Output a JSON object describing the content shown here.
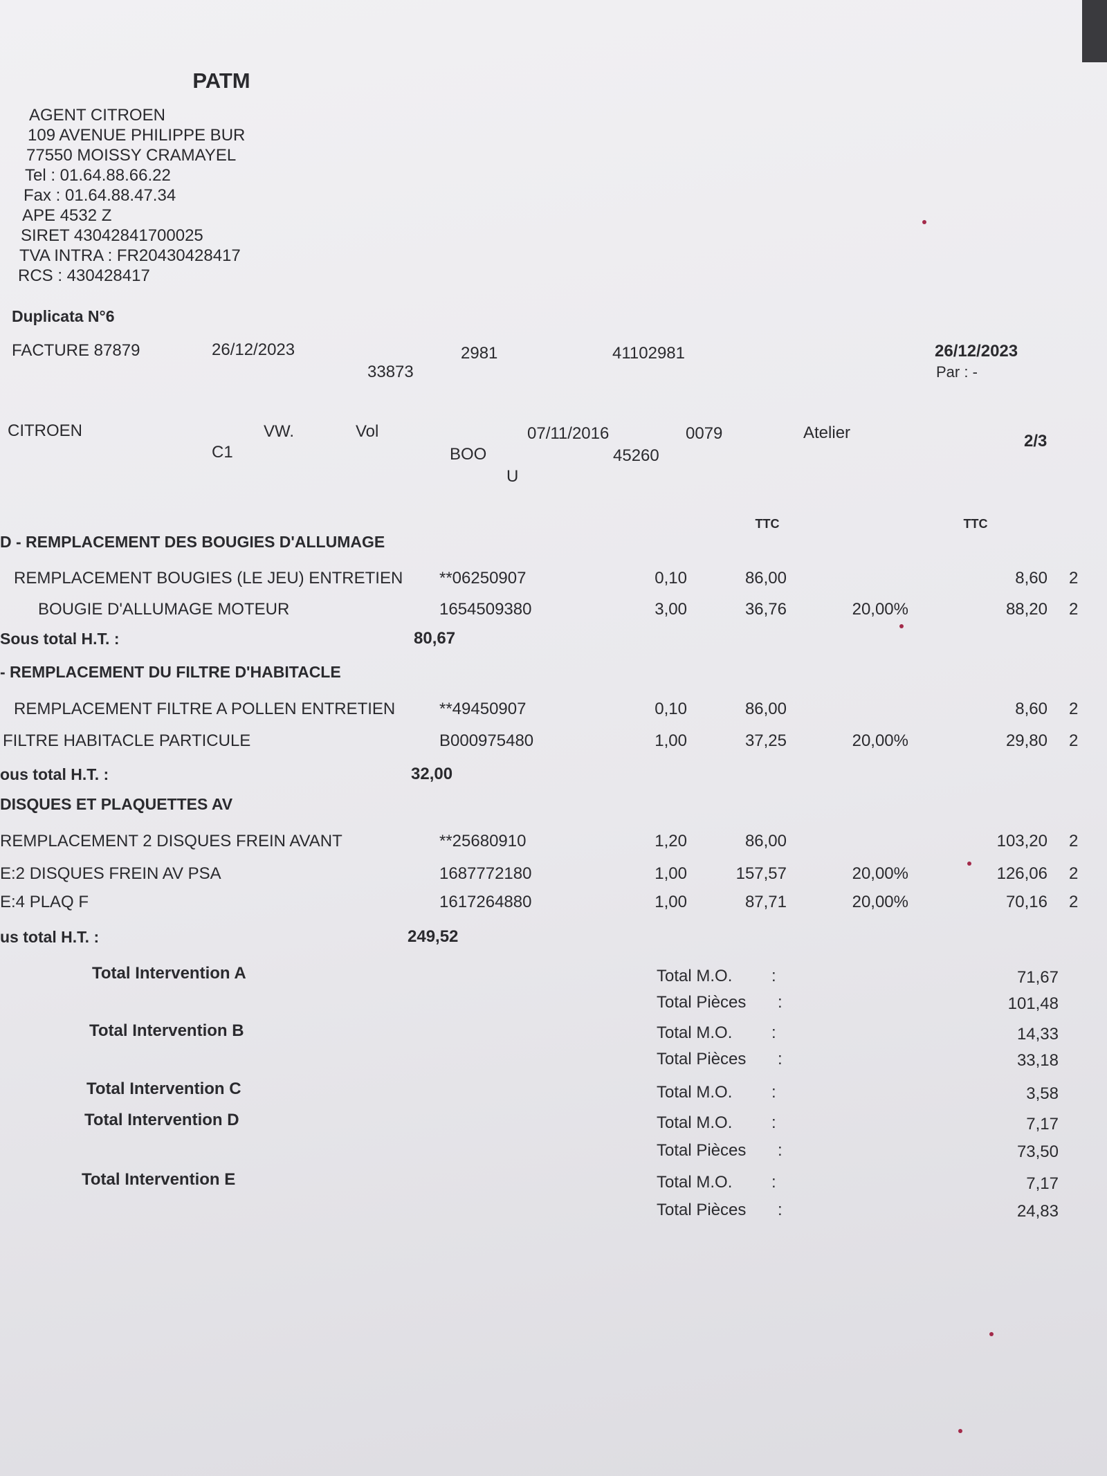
{
  "header": {
    "title": "PATM",
    "address": [
      "AGENT CITROEN",
      "109 AVENUE PHILIPPE BUR",
      "77550 MOISSY CRAMAYEL",
      "Tel : 01.64.88.66.22",
      "Fax : 01.64.88.47.34",
      "APE 4532 Z",
      "SIRET 43042841700025",
      "TVA INTRA : FR20430428417",
      "RCS : 430428417"
    ]
  },
  "duplicata": "Duplicata N°6",
  "invoice": {
    "number": "FACTURE 87879",
    "date": "26/12/2023",
    "code1": "33873",
    "code2": "2981",
    "code3": "41102981",
    "issue_date": "26/12/2023",
    "par": "Par : -"
  },
  "vehicle": {
    "make": "CITROEN",
    "model": "C1",
    "field1": "VW.",
    "field2": "Vol",
    "field3": "BOO",
    "field4": "U",
    "date": "07/11/2016",
    "mileage": "45260",
    "code": "0079",
    "type": "Atelier",
    "page": "2/3"
  },
  "columns": {
    "ttc1": "TTC",
    "ttc2": "TTC"
  },
  "sections": [
    {
      "title": "D - REMPLACEMENT DES BOUGIES D'ALLUMAGE",
      "lines": [
        {
          "label": "REMPLACEMENT BOUGIES (LE JEU) ENTRETIEN",
          "ref": "**06250907",
          "qty": "0,10",
          "price": "86,00",
          "amount": "8,60",
          "code": "2"
        },
        {
          "label": "BOUGIE D'ALLUMAGE MOTEUR",
          "ref": "1654509380",
          "qty": "3,00",
          "price": "36,76",
          "tva": "20,00%",
          "amount": "88,20",
          "code": "2"
        }
      ],
      "subtotal_label": "Sous total H.T. :",
      "subtotal": "80,67"
    },
    {
      "title": "- REMPLACEMENT DU FILTRE D'HABITACLE",
      "lines": [
        {
          "label": "REMPLACEMENT FILTRE A POLLEN ENTRETIEN",
          "ref": "**49450907",
          "qty": "0,10",
          "price": "86,00",
          "amount": "8,60",
          "code": "2"
        },
        {
          "label": "FILTRE HABITACLE PARTICULE",
          "ref": "B000975480",
          "qty": "1,00",
          "price": "37,25",
          "tva": "20,00%",
          "amount": "29,80",
          "code": "2"
        }
      ],
      "subtotal_label": "ous total H.T. :",
      "subtotal": "32,00"
    },
    {
      "title": "DISQUES ET PLAQUETTES AV",
      "lines": [
        {
          "label": "REMPLACEMENT 2 DISQUES FREIN AVANT",
          "ref": "**25680910",
          "qty": "1,20",
          "price": "86,00",
          "amount": "103,20",
          "code": "2"
        },
        {
          "label": "E:2 DISQUES FREIN AV PSA",
          "ref": "1687772180",
          "qty": "1,00",
          "price": "157,57",
          "tva": "20,00%",
          "amount": "126,06",
          "code": "2"
        },
        {
          "label": "E:4 PLAQ F",
          "ref": "1617264880",
          "qty": "1,00",
          "price": "87,71",
          "tva": "20,00%",
          "amount": "70,16",
          "code": "2"
        }
      ],
      "subtotal_label": "us total H.T. :",
      "subtotal": "249,52"
    }
  ],
  "totals": {
    "separator": ":",
    "interventions": [
      {
        "name": "Total Intervention A",
        "rows": [
          {
            "label": "Total M.O.",
            "value": "71,67"
          },
          {
            "label": "Total Pièces",
            "value": "101,48"
          }
        ]
      },
      {
        "name": "Total Intervention B",
        "rows": [
          {
            "label": "Total M.O.",
            "value": "14,33"
          },
          {
            "label": "Total Pièces",
            "value": "33,18"
          }
        ]
      },
      {
        "name": "Total Intervention C",
        "rows": [
          {
            "label": "Total M.O.",
            "value": "3,58"
          }
        ]
      },
      {
        "name": "Total Intervention D",
        "rows": [
          {
            "label": "Total M.O.",
            "value": "7,17"
          },
          {
            "label": "Total Pièces",
            "value": "73,50"
          }
        ]
      },
      {
        "name": "Total Intervention E",
        "rows": [
          {
            "label": "Total M.O.",
            "value": "7,17"
          },
          {
            "label": "Total Pièces",
            "value": "24,83"
          }
        ]
      }
    ]
  }
}
